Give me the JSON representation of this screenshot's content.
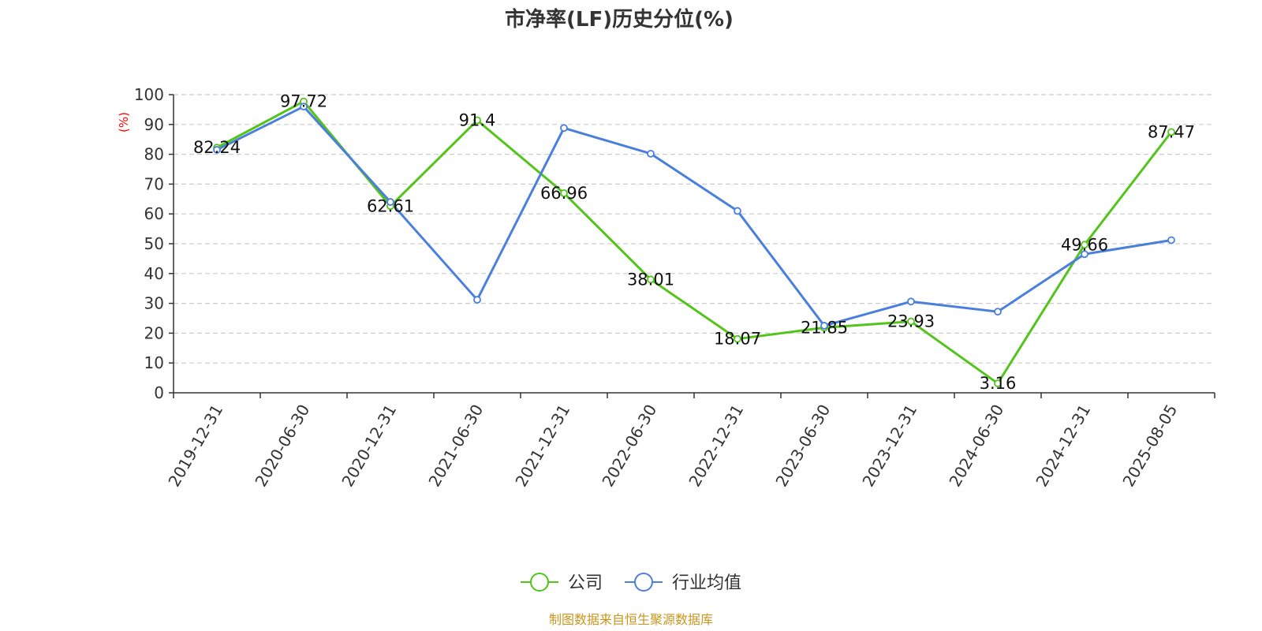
{
  "chart_data": {
    "type": "line",
    "title": "市净率(LF)历史分位(%)",
    "ylabel": "(%)",
    "ylim": [
      0,
      100
    ],
    "yticks": [
      0,
      10,
      20,
      30,
      40,
      50,
      60,
      70,
      80,
      90,
      100
    ],
    "categories": [
      "2019-12-31",
      "2020-06-30",
      "2020-12-31",
      "2021-06-30",
      "2021-12-31",
      "2022-06-30",
      "2022-12-31",
      "2023-06-30",
      "2023-12-31",
      "2024-06-30",
      "2024-12-31",
      "2025-08-05"
    ],
    "grid": true,
    "legend_position": "bottom",
    "series": [
      {
        "name": "公司",
        "color": "#52c41a",
        "values": [
          82.24,
          97.72,
          62.61,
          91.4,
          66.96,
          38.01,
          18.07,
          21.85,
          23.93,
          3.16,
          49.66,
          87.47
        ],
        "data_labels": [
          "82.24",
          "97.72",
          "62.61",
          "91.4",
          "66.96",
          "38.01",
          "18.07",
          "21.85",
          "23.93",
          "3.16",
          "49.66",
          "87.47"
        ]
      },
      {
        "name": "行业均值",
        "color": "#4a7fdc",
        "values": [
          81.5,
          96.0,
          64.0,
          31.2,
          88.8,
          80.2,
          61.0,
          22.5,
          30.6,
          27.2,
          46.5,
          51.2
        ]
      }
    ]
  },
  "source": "制图数据来自恒生聚源数据库",
  "colors": {
    "axis": "#333333",
    "grid": "#cccccc",
    "ylabel": "#ff0000",
    "source": "#c8961e"
  }
}
